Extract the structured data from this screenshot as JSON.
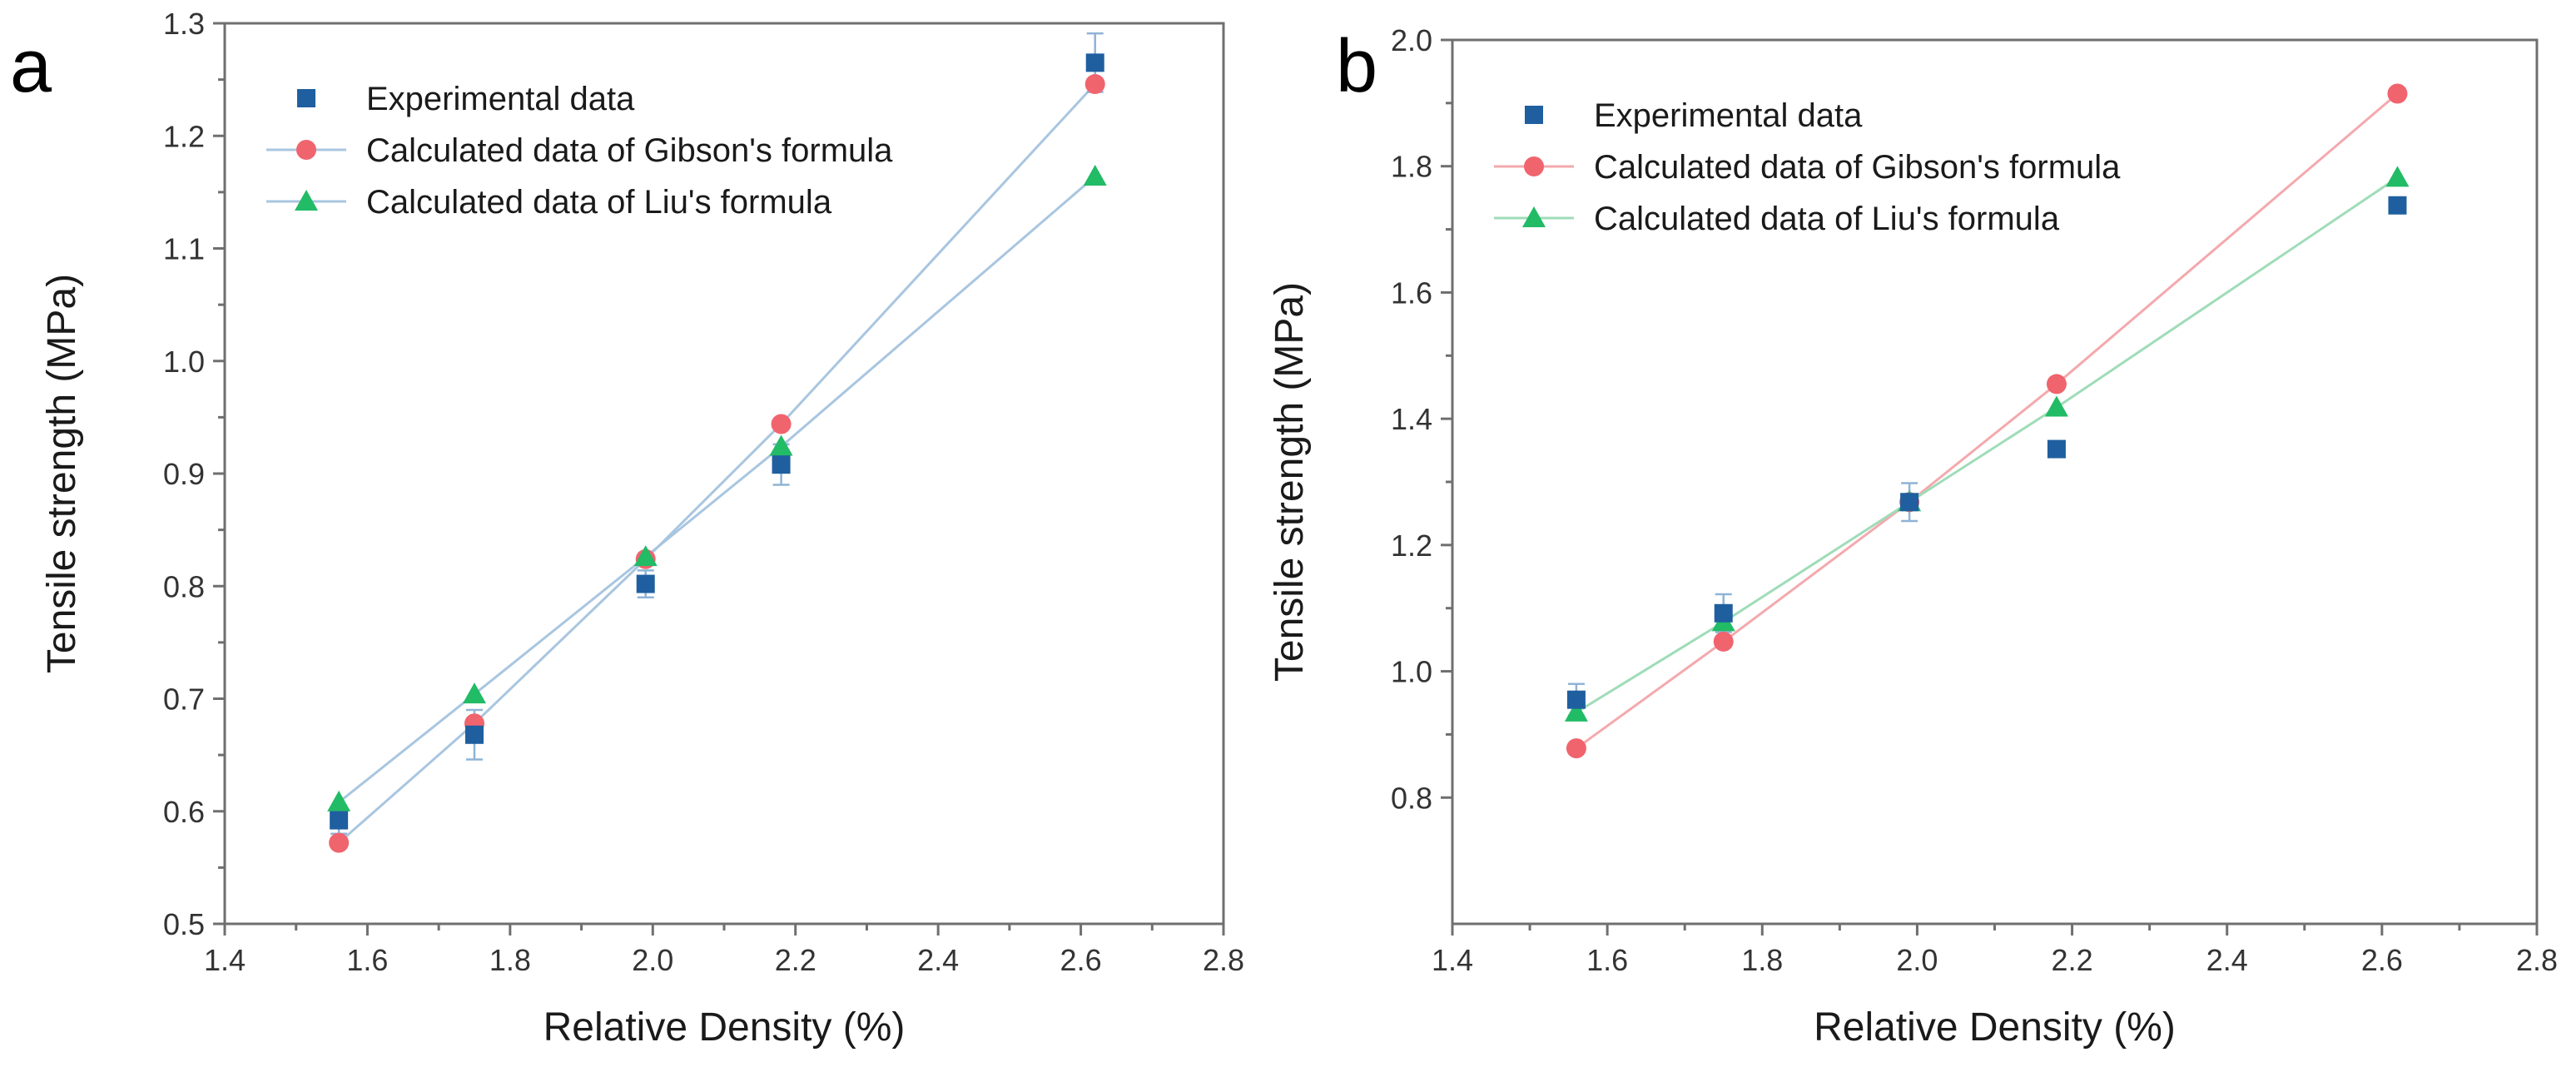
{
  "figure": {
    "panels": [
      "a",
      "b"
    ]
  },
  "chart_data": [
    {
      "panel_label": "a",
      "type": "line",
      "xlabel": "Relative Density (%)",
      "ylabel": "Tensile strength (MPa)",
      "xlim": [
        1.4,
        2.8
      ],
      "ylim": [
        0.5,
        1.3
      ],
      "xticks": [
        "1.4",
        "1.6",
        "1.8",
        "2.0",
        "2.2",
        "2.4",
        "2.6",
        "2.8"
      ],
      "yticks": [
        "0.5",
        "0.6",
        "0.7",
        "0.8",
        "0.9",
        "1.0",
        "1.1",
        "1.2",
        "1.3"
      ],
      "grid": false,
      "legend_position": "top-left",
      "series": [
        {
          "name": "Experimental data",
          "marker": "square",
          "line": false,
          "color": "#1f5f9f",
          "x": [
            1.56,
            1.75,
            1.99,
            2.18,
            2.62
          ],
          "y": [
            0.592,
            0.668,
            0.802,
            0.908,
            1.265
          ],
          "error": [
            0.012,
            0.022,
            0.012,
            0.018,
            0.026
          ]
        },
        {
          "name": "Calculated data of Gibson's formula",
          "marker": "circle",
          "line": true,
          "color": "#f0646e",
          "line_color": "#a9c6e0",
          "x": [
            1.56,
            1.75,
            1.99,
            2.18,
            2.62
          ],
          "y": [
            0.572,
            0.678,
            0.824,
            0.944,
            1.246
          ]
        },
        {
          "name": "Calculated data of Liu's formula",
          "marker": "triangle",
          "line": true,
          "color": "#22bb66",
          "line_color": "#a9c6e0",
          "x": [
            1.56,
            1.75,
            1.99,
            2.18,
            2.62
          ],
          "y": [
            0.608,
            0.704,
            0.826,
            0.924,
            1.164
          ]
        }
      ]
    },
    {
      "panel_label": "b",
      "type": "line",
      "xlabel": "Relative Density (%)",
      "ylabel": "Tensile strength (MPa)",
      "xlim": [
        1.4,
        2.8
      ],
      "ylim": [
        0.6,
        2.0
      ],
      "xticks": [
        "1.4",
        "1.6",
        "1.8",
        "2.0",
        "2.2",
        "2.4",
        "2.6",
        "2.8"
      ],
      "yticks": [
        "0.8",
        "1.0",
        "1.2",
        "1.4",
        "1.6",
        "1.8",
        "2.0"
      ],
      "grid": false,
      "legend_position": "top-left",
      "series": [
        {
          "name": "Experimental data",
          "marker": "square",
          "line": false,
          "color": "#1f5f9f",
          "x": [
            1.56,
            1.75,
            1.99,
            2.18,
            2.62
          ],
          "y": [
            0.955,
            1.092,
            1.268,
            1.352,
            1.738
          ],
          "error": [
            0.025,
            0.03,
            0.03,
            0.0,
            0.0
          ]
        },
        {
          "name": "Calculated data of Gibson's formula",
          "marker": "circle",
          "line": true,
          "color": "#f0646e",
          "line_color": "#f4a9ad",
          "x": [
            1.56,
            1.75,
            1.99,
            2.18,
            2.62
          ],
          "y": [
            0.878,
            1.047,
            1.268,
            1.455,
            1.915
          ]
        },
        {
          "name": "Calculated data of Liu's formula",
          "marker": "triangle",
          "line": true,
          "color": "#22bb66",
          "line_color": "#9fdcb8",
          "x": [
            1.56,
            1.75,
            1.99,
            2.18,
            2.62
          ],
          "y": [
            0.935,
            1.078,
            1.268,
            1.418,
            1.782
          ]
        }
      ]
    }
  ]
}
